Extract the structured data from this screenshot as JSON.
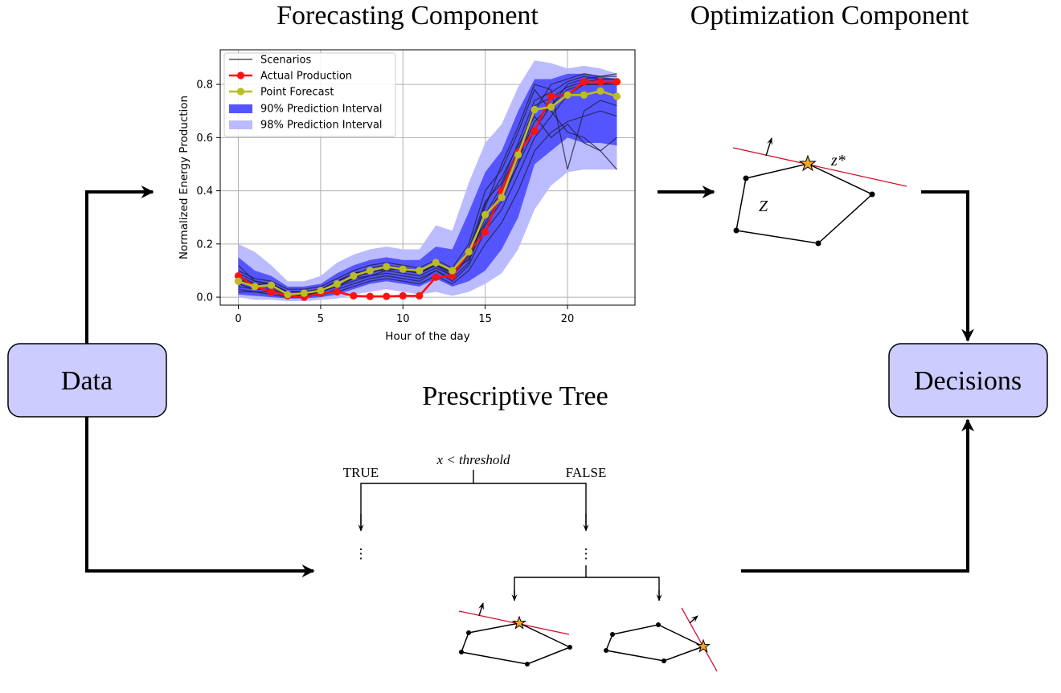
{
  "headings": {
    "forecasting": "Forecasting Component",
    "optimization": "Optimization Component",
    "prescriptive": "Prescriptive Tree"
  },
  "boxes": {
    "data": "Data",
    "decisions": "Decisions"
  },
  "colors": {
    "box_fill": "#ccccff",
    "interval90": "#5555ff",
    "interval98": "#bbbbff",
    "scenario": "#1f1f3a",
    "actual": "#ff1111",
    "point_forecast": "#bcbd22",
    "hyperplane": "#d0102a",
    "star": "#f5a623"
  },
  "tree": {
    "split_label": "x < threshold",
    "true_label": "TRUE",
    "false_label": "FALSE",
    "ellipsis": "⋮"
  },
  "optimization": {
    "feasible_set_label": "Z",
    "optimum_label": "z*"
  },
  "chart_data": {
    "type": "line",
    "xlabel": "Hour of the day",
    "ylabel": "Normalized Energy Production",
    "xlim": [
      -1.1,
      24.1
    ],
    "ylim": [
      -0.03,
      0.93
    ],
    "xticks": [
      0,
      5,
      10,
      15,
      20
    ],
    "yticks": [
      0.0,
      0.2,
      0.4,
      0.6,
      0.8
    ],
    "ytick_labels": [
      "0.0",
      "0.2",
      "0.4",
      "0.6",
      "0.8"
    ],
    "grid": true,
    "legend_placement": "top-left",
    "legend": [
      "Scenarios",
      "Actual Production",
      "Point Forecast",
      "90% Prediction Interval",
      "98% Prediction Interval"
    ],
    "x": [
      0,
      1,
      2,
      3,
      4,
      5,
      6,
      7,
      8,
      9,
      10,
      11,
      12,
      13,
      14,
      15,
      16,
      17,
      18,
      19,
      20,
      21,
      22,
      23
    ],
    "actual": [
      0.08,
      0.04,
      0.02,
      0.005,
      0.0,
      0.015,
      0.02,
      0.005,
      0.003,
      0.003,
      0.005,
      0.005,
      0.075,
      0.08,
      0.17,
      0.245,
      0.4,
      0.545,
      0.625,
      0.755,
      0.76,
      0.81,
      0.81,
      0.81
    ],
    "point_forecast": [
      0.06,
      0.04,
      0.045,
      0.01,
      0.015,
      0.025,
      0.05,
      0.08,
      0.1,
      0.115,
      0.105,
      0.1,
      0.13,
      0.1,
      0.17,
      0.31,
      0.375,
      0.535,
      0.705,
      0.715,
      0.76,
      0.76,
      0.775,
      0.755
    ],
    "interval90": {
      "upper": [
        0.15,
        0.1,
        0.08,
        0.04,
        0.04,
        0.05,
        0.09,
        0.12,
        0.14,
        0.15,
        0.14,
        0.14,
        0.19,
        0.18,
        0.32,
        0.47,
        0.55,
        0.7,
        0.82,
        0.82,
        0.84,
        0.84,
        0.83,
        0.82
      ],
      "lower": [
        0.01,
        0.005,
        0.0,
        -0.005,
        -0.005,
        0.0,
        0.01,
        0.03,
        0.05,
        0.06,
        0.05,
        0.04,
        0.07,
        0.04,
        0.06,
        0.1,
        0.18,
        0.3,
        0.5,
        0.55,
        0.6,
        0.58,
        0.58,
        0.57
      ]
    },
    "interval98": {
      "upper": [
        0.2,
        0.17,
        0.12,
        0.06,
        0.06,
        0.08,
        0.13,
        0.16,
        0.18,
        0.19,
        0.18,
        0.18,
        0.27,
        0.25,
        0.43,
        0.58,
        0.65,
        0.79,
        0.89,
        0.88,
        0.86,
        0.87,
        0.86,
        0.84
      ],
      "lower": [
        0.0,
        -0.01,
        -0.01,
        -0.015,
        -0.015,
        -0.01,
        -0.005,
        0.01,
        0.02,
        0.03,
        0.02,
        0.01,
        0.02,
        0.005,
        0.02,
        0.05,
        0.09,
        0.18,
        0.33,
        0.42,
        0.47,
        0.48,
        0.48,
        0.48
      ]
    },
    "scenarios": [
      [
        0.05,
        0.03,
        0.03,
        0.01,
        0.01,
        0.02,
        0.04,
        0.07,
        0.08,
        0.1,
        0.09,
        0.08,
        0.11,
        0.08,
        0.15,
        0.3,
        0.4,
        0.52,
        0.66,
        0.72,
        0.8,
        0.82,
        0.83,
        0.84
      ],
      [
        0.12,
        0.06,
        0.05,
        0.02,
        0.02,
        0.03,
        0.06,
        0.09,
        0.1,
        0.12,
        0.1,
        0.1,
        0.13,
        0.09,
        0.18,
        0.36,
        0.43,
        0.58,
        0.74,
        0.77,
        0.81,
        0.83,
        0.82,
        0.82
      ],
      [
        0.03,
        0.02,
        0.02,
        0.0,
        0.01,
        0.01,
        0.03,
        0.05,
        0.07,
        0.08,
        0.07,
        0.06,
        0.1,
        0.06,
        0.12,
        0.25,
        0.33,
        0.46,
        0.6,
        0.68,
        0.76,
        0.8,
        0.8,
        0.81
      ],
      [
        0.08,
        0.05,
        0.04,
        0.01,
        0.01,
        0.02,
        0.05,
        0.08,
        0.09,
        0.11,
        0.1,
        0.09,
        0.12,
        0.1,
        0.16,
        0.28,
        0.38,
        0.5,
        0.7,
        0.8,
        0.82,
        0.84,
        0.83,
        0.83
      ],
      [
        0.1,
        0.07,
        0.06,
        0.03,
        0.03,
        0.04,
        0.07,
        0.1,
        0.12,
        0.13,
        0.12,
        0.11,
        0.14,
        0.11,
        0.2,
        0.4,
        0.48,
        0.62,
        0.78,
        0.7,
        0.62,
        0.6,
        0.55,
        0.48
      ],
      [
        0.02,
        0.02,
        0.01,
        0.0,
        0.0,
        0.01,
        0.02,
        0.04,
        0.06,
        0.07,
        0.06,
        0.05,
        0.08,
        0.05,
        0.1,
        0.2,
        0.28,
        0.4,
        0.55,
        0.62,
        0.66,
        0.68,
        0.7,
        0.68
      ],
      [
        0.07,
        0.04,
        0.04,
        0.01,
        0.02,
        0.02,
        0.05,
        0.07,
        0.1,
        0.1,
        0.11,
        0.1,
        0.12,
        0.09,
        0.17,
        0.34,
        0.5,
        0.64,
        0.8,
        0.78,
        0.48,
        0.7,
        0.74,
        0.72
      ],
      [
        0.06,
        0.05,
        0.05,
        0.02,
        0.02,
        0.03,
        0.06,
        0.08,
        0.11,
        0.12,
        0.11,
        0.09,
        0.13,
        0.1,
        0.14,
        0.27,
        0.36,
        0.5,
        0.63,
        0.72,
        0.78,
        0.8,
        0.8,
        0.8
      ],
      [
        0.04,
        0.03,
        0.03,
        0.01,
        0.01,
        0.02,
        0.04,
        0.06,
        0.08,
        0.09,
        0.08,
        0.07,
        0.1,
        0.07,
        0.13,
        0.31,
        0.42,
        0.55,
        0.72,
        0.75,
        0.79,
        0.81,
        0.82,
        0.82
      ],
      [
        0.09,
        0.06,
        0.05,
        0.02,
        0.02,
        0.03,
        0.06,
        0.09,
        0.1,
        0.12,
        0.1,
        0.09,
        0.12,
        0.08,
        0.16,
        0.35,
        0.45,
        0.57,
        0.68,
        0.6,
        0.65,
        0.58,
        0.55,
        0.6
      ]
    ]
  }
}
